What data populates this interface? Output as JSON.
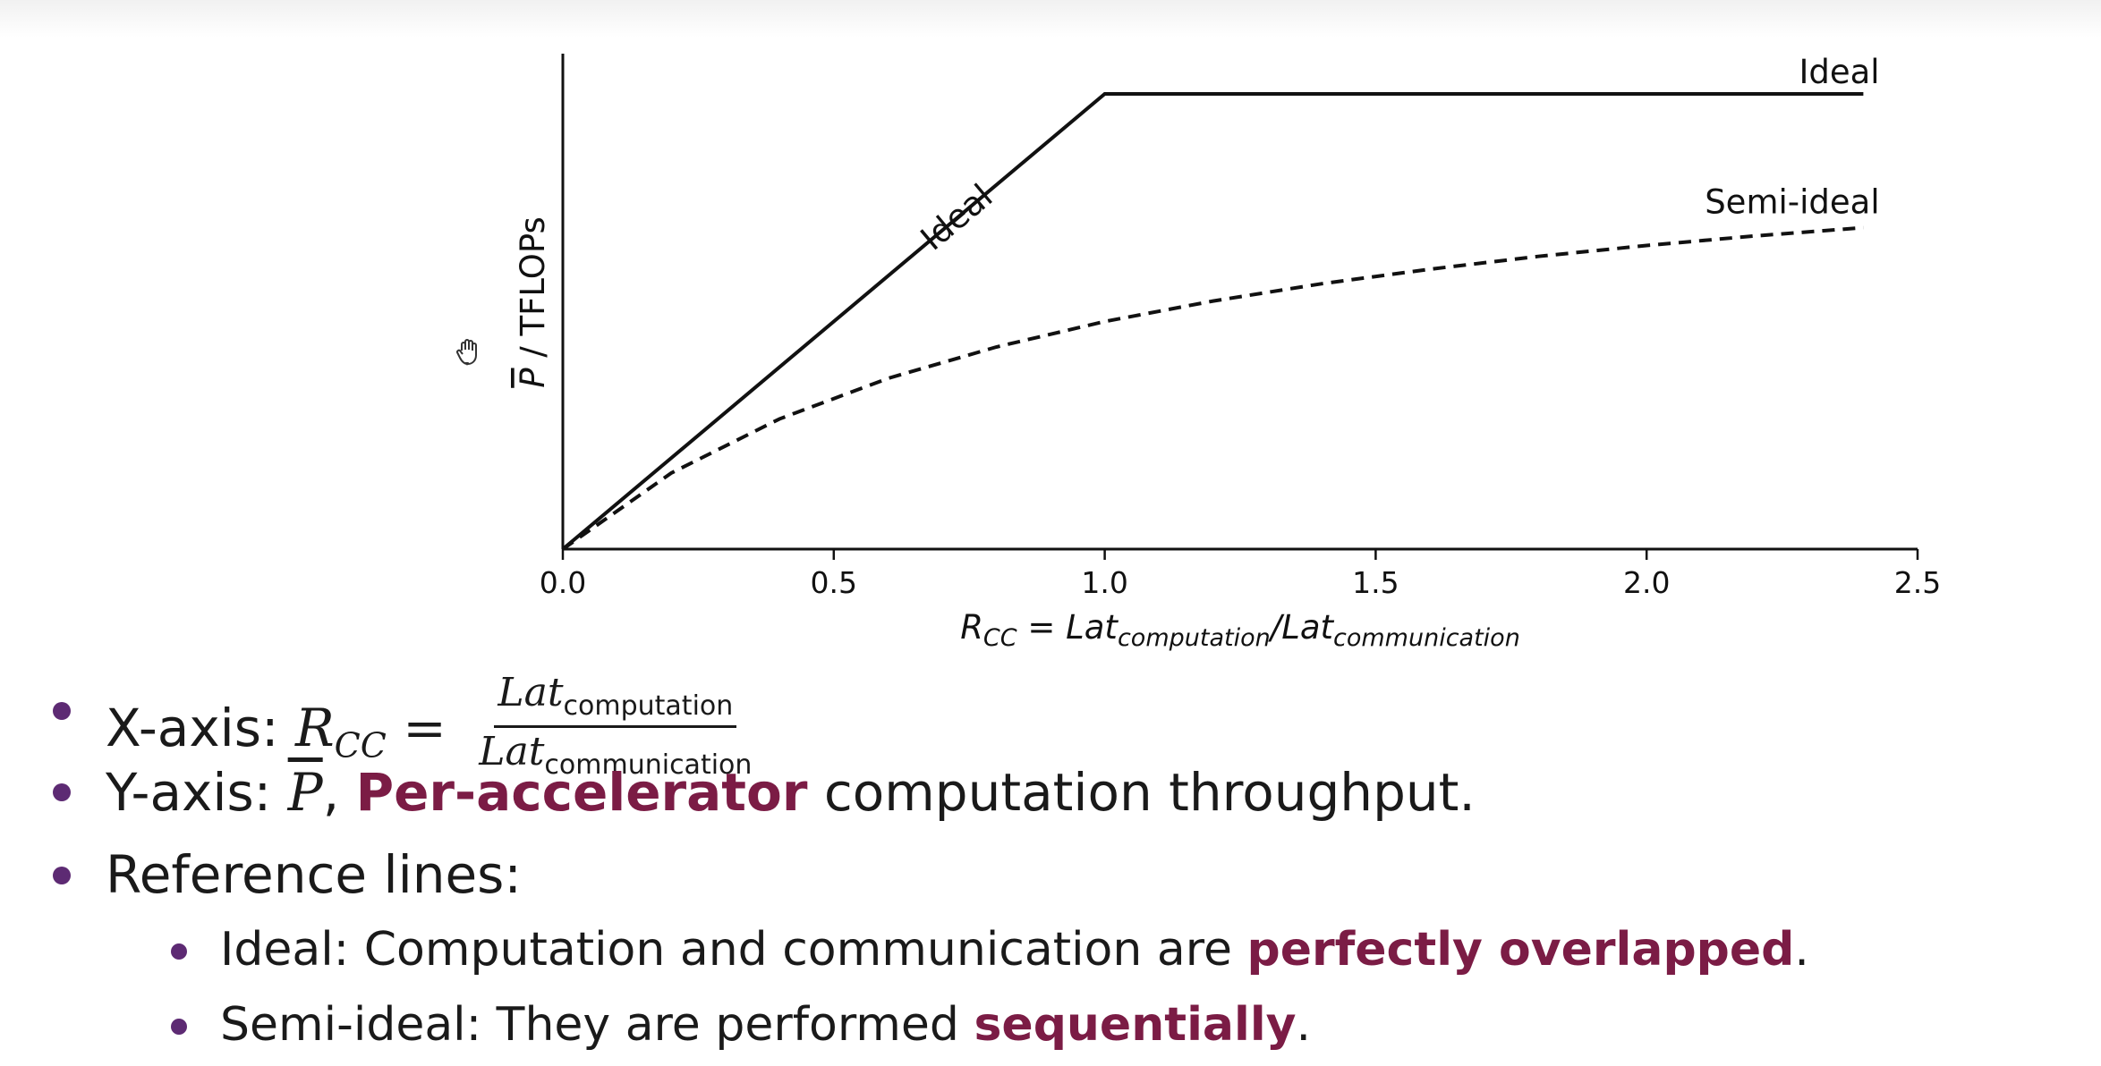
{
  "chart_data": {
    "type": "line",
    "title": "",
    "xlabel_base": "R",
    "xlabel_sub": "CC",
    "xlabel_eq": " = Lat",
    "xlabel_sub2": "computation",
    "xlabel_mid": "/Lat",
    "xlabel_sub3": "communication",
    "ylabel_bar": "P",
    "ylabel_rest": " / TFLOPs",
    "xlim": [
      0,
      2.5
    ],
    "ylim": [
      0,
      1.1
    ],
    "xticks": [
      0.0,
      0.5,
      1.0,
      1.5,
      2.0,
      2.5
    ],
    "xtick_labels": [
      "0.0",
      "0.5",
      "1.0",
      "1.5",
      "2.0",
      "2.5"
    ],
    "yticks_shown": false,
    "grid": false,
    "series": [
      {
        "name": "Ideal",
        "style": "solid",
        "color": "#111111",
        "x": [
          0.0,
          1.0,
          2.4
        ],
        "y": [
          0.0,
          1.0,
          1.0
        ]
      },
      {
        "name": "Semi-ideal",
        "style": "dashed",
        "color": "#111111",
        "x": [
          0.0,
          0.2,
          0.4,
          0.6,
          0.8,
          1.0,
          1.2,
          1.4,
          1.6,
          1.8,
          2.0,
          2.2,
          2.4
        ],
        "y": [
          0.0,
          0.167,
          0.286,
          0.375,
          0.444,
          0.5,
          0.545,
          0.583,
          0.615,
          0.643,
          0.667,
          0.688,
          0.706
        ]
      }
    ],
    "annotations": [
      "Ideal",
      "Ideal",
      "Semi-ideal"
    ]
  },
  "bullets": {
    "b1_label": "X-axis: ",
    "b1_math_base": "R",
    "b1_math_sub": "CC",
    "b1_eq": " = ",
    "b1_num_base": "Lat",
    "b1_num_sub": "computation",
    "b1_den_base": "Lat",
    "b1_den_sub": "communication",
    "b2_label": "Y-axis: ",
    "b2_math": "P",
    "b2_comma": ", ",
    "b2_highlight": "Per-accelerator",
    "b2_rest": " computation throughput.",
    "b3_text": "Reference lines:",
    "b4_label": "Ideal: Computation and communication are ",
    "b4_highlight": "perfectly overlapped",
    "b4_end": ".",
    "b5_label": "Semi-ideal: They are performed ",
    "b5_highlight": "sequentially",
    "b5_end": "."
  },
  "colors": {
    "bullet_dot": "#5d2a73",
    "highlight": "#7b1c45",
    "ink": "#111111"
  },
  "icons": {
    "cursor": "hand-grab-icon"
  }
}
